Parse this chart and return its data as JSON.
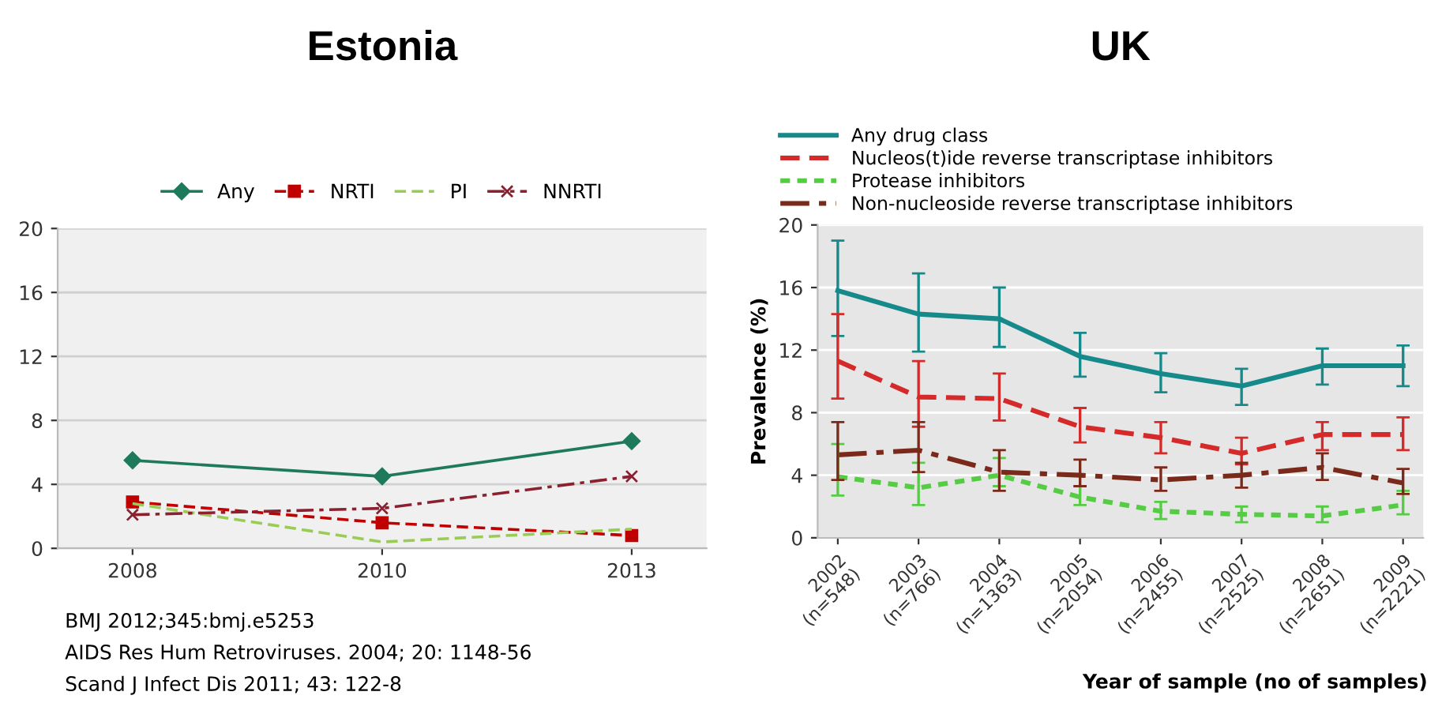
{
  "chart_data": [
    {
      "type": "line",
      "title": "Estonia",
      "categories": [
        "2008",
        "2010",
        "2013"
      ],
      "ylim": [
        0,
        20
      ],
      "yticks": [
        0,
        4,
        8,
        12,
        16,
        20
      ],
      "grid": "y",
      "legend": "top",
      "series": [
        {
          "name": "Any",
          "color": "#1e7a5a",
          "values": [
            5.5,
            4.5,
            6.7
          ],
          "marker": "diamond",
          "line_style": "solid"
        },
        {
          "name": "NRTI",
          "color": "#c00000",
          "values": [
            2.9,
            1.6,
            0.8
          ],
          "marker": "square",
          "line_style": "dashed"
        },
        {
          "name": "PI",
          "color": "#99cc55",
          "values": [
            2.8,
            0.4,
            1.2
          ],
          "marker": "none",
          "line_style": "dashed"
        },
        {
          "name": "NNRTI",
          "color": "#8b2030",
          "values": [
            2.1,
            2.5,
            4.5
          ],
          "marker": "cross",
          "line_style": "dashdot"
        }
      ],
      "annotations": [
        "BMJ 2012;345:bmj.e5253",
        "AIDS Res Hum Retroviruses. $^{}$2004; 20: 1148-56",
        "Scand J Infect Dis 2011; 43: 122-8"
      ]
    },
    {
      "type": "line",
      "title": "UK",
      "ylabel": "Prevalence (%)",
      "xlabel": "Year of sample (no of samples)",
      "categories": [
        "2002\n(n=548)",
        "2003\n(n=766)",
        "2004\n(n=1363)",
        "2005\n(n=2054)",
        "2006\n(n=2455)",
        "2007\n(n=2525)",
        "2008\n(n=2651)",
        "2009\n(n=2221)"
      ],
      "ylim": [
        0,
        20
      ],
      "yticks": [
        0,
        4,
        8,
        12,
        16,
        20
      ],
      "grid": "y",
      "legend": "top",
      "marker": "none",
      "series": [
        {
          "name": "Any drug class",
          "color": "#16898a",
          "line_style": "solid",
          "values": [
            15.8,
            14.3,
            14.0,
            11.6,
            10.5,
            9.7,
            11.0,
            11.0
          ],
          "errors": [
            [
              12.9,
              19.0
            ],
            [
              11.9,
              16.9
            ],
            [
              12.2,
              16.0
            ],
            [
              10.3,
              13.1
            ],
            [
              9.3,
              11.8
            ],
            [
              8.5,
              10.8
            ],
            [
              9.8,
              12.1
            ],
            [
              9.7,
              12.3
            ]
          ]
        },
        {
          "name": "Nucleos(t)ide reverse transcriptase inhibitors",
          "color": "#d42a2a",
          "line_style": "dashed",
          "values": [
            11.3,
            9.0,
            8.9,
            7.1,
            6.4,
            5.4,
            6.6,
            6.6
          ],
          "errors": [
            [
              8.9,
              14.3
            ],
            [
              7.1,
              11.3
            ],
            [
              7.5,
              10.5
            ],
            [
              6.1,
              8.3
            ],
            [
              5.4,
              7.4
            ],
            [
              4.7,
              6.4
            ],
            [
              5.6,
              7.4
            ],
            [
              5.6,
              7.7
            ]
          ]
        },
        {
          "name": "Protease inhibitors",
          "color": "#55cc44",
          "line_style": "dotted",
          "values": [
            3.9,
            3.2,
            4.0,
            2.6,
            1.7,
            1.5,
            1.4,
            2.1
          ],
          "errors": [
            [
              2.7,
              6.0
            ],
            [
              2.1,
              4.8
            ],
            [
              3.3,
              5.1
            ],
            [
              2.1,
              3.3
            ],
            [
              1.2,
              2.3
            ],
            [
              1.0,
              2.0
            ],
            [
              1.0,
              2.0
            ],
            [
              1.5,
              3.0
            ]
          ]
        },
        {
          "name": "Non-nucleoside reverse transcriptase inhibitors",
          "color": "#7a2a1a",
          "line_style": "dashdot",
          "values": [
            5.3,
            5.6,
            4.2,
            4.0,
            3.7,
            4.0,
            4.5,
            3.5
          ],
          "errors": [
            [
              3.7,
              7.4
            ],
            [
              4.2,
              7.4
            ],
            [
              3.0,
              5.6
            ],
            [
              3.3,
              5.0
            ],
            [
              3.0,
              4.5
            ],
            [
              3.2,
              4.8
            ],
            [
              3.7,
              5.4
            ],
            [
              2.8,
              4.4
            ]
          ]
        }
      ]
    }
  ]
}
